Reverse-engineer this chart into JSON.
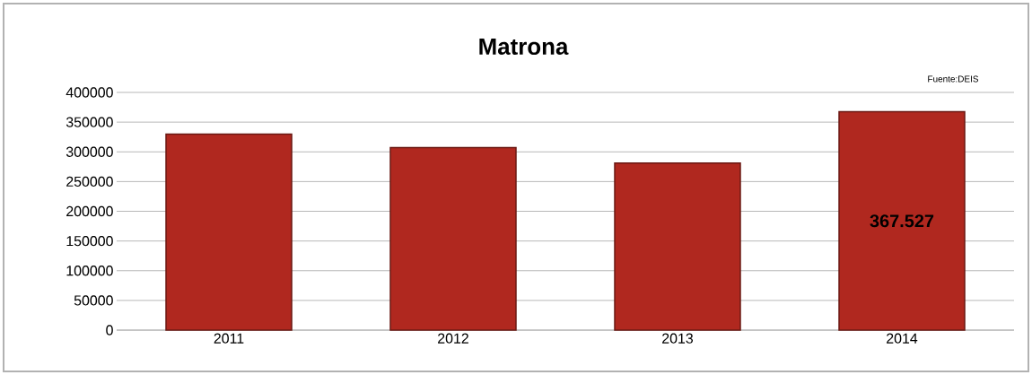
{
  "chart_data": {
    "type": "bar",
    "title": "Matrona",
    "annotations": [
      "Fuente:DEIS"
    ],
    "categories": [
      "2011",
      "2012",
      "2013",
      "2014"
    ],
    "values": [
      330000,
      307000,
      281000,
      367527
    ],
    "value_labels": [
      null,
      null,
      null,
      "367.527"
    ],
    "color": "#b0281f",
    "ylim": [
      0,
      400000
    ],
    "yticks": [
      0,
      50000,
      100000,
      150000,
      200000,
      250000,
      300000,
      350000,
      400000
    ],
    "grid": "y"
  }
}
